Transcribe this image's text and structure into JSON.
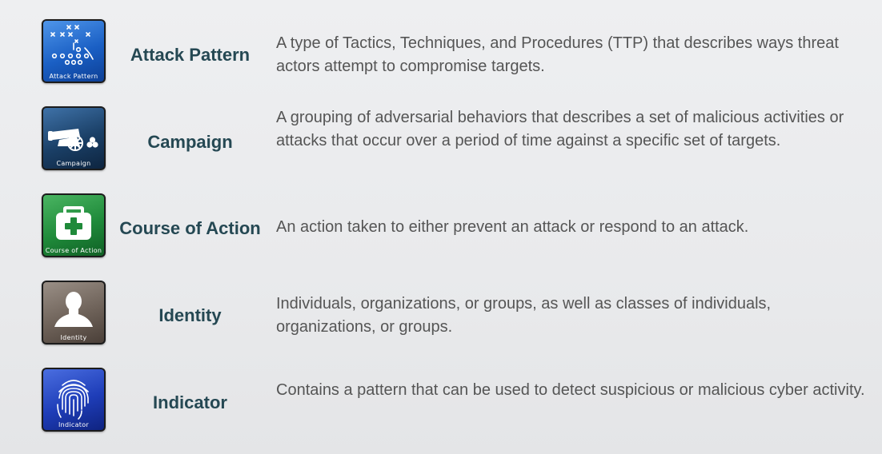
{
  "items": [
    {
      "icon": "attack-pattern-icon",
      "icon_caption": "Attack Pattern",
      "term": "Attack Pattern",
      "description": "A type of Tactics, Techniques, and Procedures (TTP) that describes ways threat actors attempt to compromise targets."
    },
    {
      "icon": "campaign-icon",
      "icon_caption": "Campaign",
      "term": "Campaign",
      "description": "A grouping of adversarial behaviors that describes a set of malicious activities or attacks that occur over a period of time against a specific set of targets."
    },
    {
      "icon": "course-of-action-icon",
      "icon_caption": "Course of Action",
      "term": "Course of Action",
      "description": "An action taken to either prevent an attack or respond to an attack."
    },
    {
      "icon": "identity-icon",
      "icon_caption": "Identity",
      "term": "Identity",
      "description": "Individuals, organizations, or groups, as well as classes of individuals, organizations, or groups."
    },
    {
      "icon": "indicator-icon",
      "icon_caption": "Indicator",
      "term": "Indicator",
      "description": "Contains a pattern that can be used to detect suspicious or malicious cyber activity."
    }
  ],
  "colors": {
    "term_text": "#254853",
    "description_text": "#555555",
    "attack_pattern_tile": "#1a5fc4",
    "campaign_tile": "#1a3f66",
    "course_of_action_tile": "#1f8a3a",
    "identity_tile": "#6e6259",
    "indicator_tile": "#1e3db8"
  }
}
